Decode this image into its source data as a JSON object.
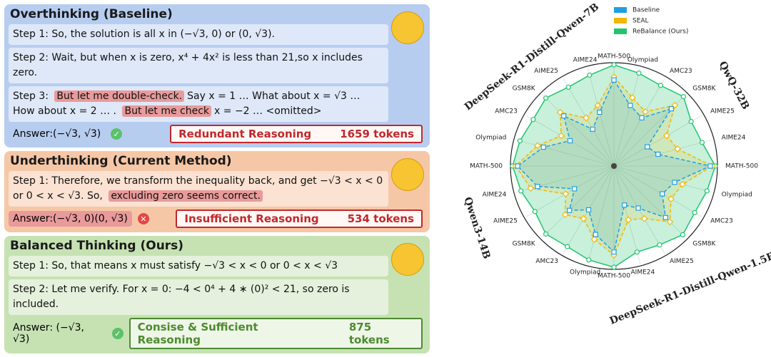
{
  "panels": [
    {
      "title": "Overthinking (Baseline)",
      "steps": [
        [
          "Step 1: So, the solution is all x in (−√3, 0) or (0, √3)."
        ],
        [
          "Step 2: Wait, but when x is zero, x⁴ + 4x² is less than 21,so x includes zero."
        ],
        [
          "Step 3:",
          {
            "text": "But let me double-check.",
            "highlight": true
          },
          "Say x = 1 … What about x = √3 … How about x = 2 … .",
          {
            "text": "But let me check",
            "highlight": true
          },
          "x = −2 … <omitted>"
        ]
      ],
      "answer": "Answer:(−√3, √3)",
      "answer_correct": true,
      "verdict": "Redundant Reasoning",
      "tokens": "1659 tokens"
    },
    {
      "title": "Underthinking (Current Method)",
      "steps": [
        [
          "Step 1: Therefore, we transform the inequality back, and get −√3 < x < 0 or 0 < x < √3. So,",
          {
            "text": "excluding zero seems correct.",
            "highlight": true
          }
        ]
      ],
      "answer": {
        "text": "Answer:(−√3, 0)(0, √3)",
        "highlight": true
      },
      "answer_correct": false,
      "verdict": "Insufficient Reasoning",
      "tokens": "534 tokens"
    },
    {
      "title": "Balanced Thinking (Ours)",
      "steps": [
        [
          "Step 1: So, that means x must satisfy −√3 < x < 0 or 0 < x < √3"
        ],
        [
          "Step 2: Let me verify. For x = 0: −4 < 0⁴ + 4 ∗ (0)² < 21, so zero is included."
        ]
      ],
      "answer": "Answer: (−√3, √3)",
      "answer_correct": true,
      "verdict": "Consise & Sufficient Reasoning",
      "tokens": "875 tokens"
    }
  ],
  "chart_data": {
    "type": "radar",
    "categories": [
      "MATH-500",
      "Olympiad",
      "AMC23",
      "GSM8K",
      "AIME25",
      "AIME24",
      "MATH-500",
      "Olympiad",
      "AMC23",
      "GSM8K",
      "AIME25",
      "AIME24",
      "MATH-500",
      "Olympiad",
      "AMC23",
      "GSM8K",
      "AIME25",
      "AIME24",
      "MATH-500",
      "Olympiad",
      "AMC23",
      "GSM8K",
      "AIME25",
      "AIME24"
    ],
    "groups": [
      "DeepSeek-R1-Distill-Qwen-7B",
      "QwQ-32B",
      "DeepSeek-R1-Distill-Qwen-1.5B",
      "Qwen3-14B"
    ],
    "rlim": [
      0,
      100
    ],
    "legend": "upper center",
    "series": [
      {
        "name": "Baseline",
        "color": "#1f9fe0",
        "values": [
          85,
          62,
          55,
          80,
          38,
          45,
          95,
          62,
          55,
          72,
          48,
          40,
          85,
          70,
          50,
          62,
          45,
          78,
          95,
          72,
          50,
          70,
          42,
          55
        ]
      },
      {
        "name": "SEAL",
        "color": "#f2b705",
        "values": [
          88,
          70,
          62,
          85,
          60,
          65,
          97,
          70,
          65,
          78,
          60,
          55,
          88,
          75,
          60,
          68,
          55,
          85,
          97,
          78,
          60,
          75,
          55,
          62
        ]
      },
      {
        "name": "ReBalance (Ours)",
        "color": "#22c46e",
        "values": [
          100,
          95,
          92,
          97,
          88,
          90,
          100,
          95,
          92,
          96,
          90,
          88,
          100,
          96,
          92,
          95,
          90,
          95,
          100,
          96,
          92,
          95,
          90,
          93
        ]
      }
    ]
  }
}
